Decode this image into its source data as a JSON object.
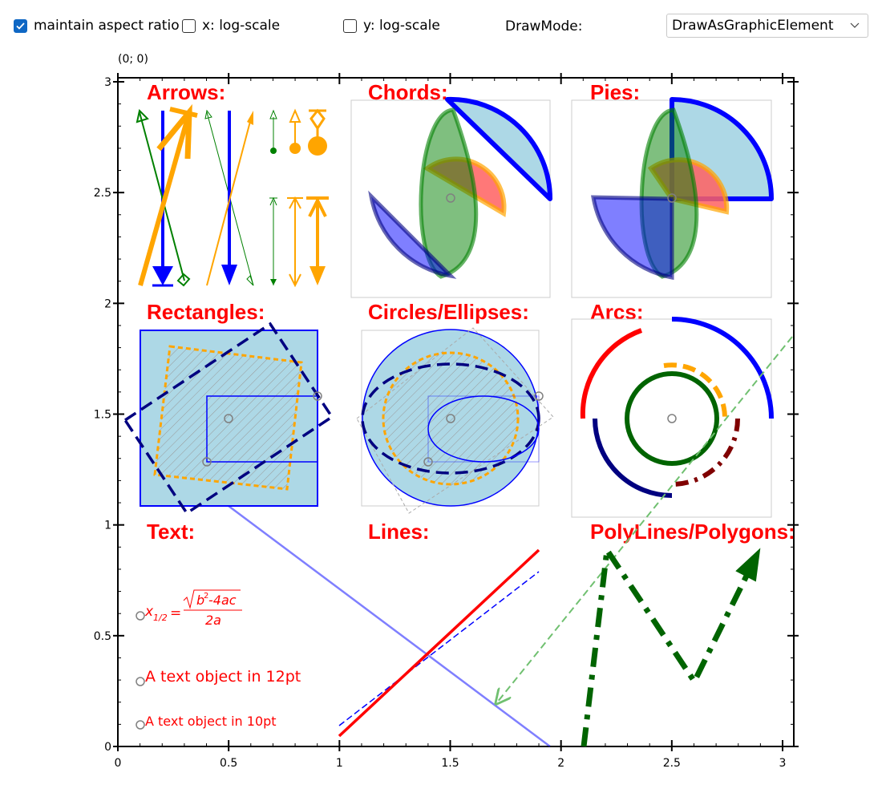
{
  "toolbar": {
    "maintain_aspect": {
      "label": "maintain aspect ratio",
      "checked": true
    },
    "x_log": {
      "label": "x: log-scale",
      "checked": false
    },
    "y_log": {
      "label": "y: log-scale",
      "checked": false
    },
    "drawmode_label": "DrawMode:",
    "drawmode_value": "DrawAsGraphicElement"
  },
  "plot": {
    "corner_label": "(0; 0)",
    "xlim": [
      0,
      3
    ],
    "ylim": [
      0,
      3
    ],
    "x_ticks": [
      {
        "v": 0,
        "t": "0"
      },
      {
        "v": 0.5,
        "t": "0.5"
      },
      {
        "v": 1,
        "t": "1"
      },
      {
        "v": 1.5,
        "t": "1.5"
      },
      {
        "v": 2,
        "t": "2"
      },
      {
        "v": 2.5,
        "t": "2.5"
      },
      {
        "v": 3,
        "t": "3"
      }
    ],
    "y_ticks": [
      {
        "v": 0,
        "t": "0"
      },
      {
        "v": 0.5,
        "t": "0.5"
      },
      {
        "v": 1,
        "t": "1"
      },
      {
        "v": 1.5,
        "t": "1.5"
      },
      {
        "v": 2,
        "t": "2"
      },
      {
        "v": 2.5,
        "t": "2.5"
      },
      {
        "v": 3,
        "t": "3"
      }
    ],
    "sections": {
      "arrows": "Arrows:",
      "chords": "Chords:",
      "pies": "Pies:",
      "rectangles": "Rectangles:",
      "circles": "Circles/Ellipses:",
      "arcs": "Arcs:",
      "text": "Text:",
      "lines": "Lines:",
      "polylines": "PolyLines/Polygons:"
    },
    "texts": {
      "formula_x": "x",
      "formula_sub": "1/2",
      "formula_eq": "=",
      "formula_num": "b",
      "formula_sup": "2",
      "formula_rest": "-4ac",
      "formula_den": "2a",
      "text12": "A text object in 12pt",
      "text10": "A text object in 10pt"
    },
    "colors": {
      "title": "#ff0000",
      "blue": "#0000ff",
      "orange": "#ffa500",
      "green": "#008000",
      "darkgreen": "#006400",
      "navy": "#000080",
      "lightblue": "#add8e6",
      "maroon": "#800000"
    }
  }
}
